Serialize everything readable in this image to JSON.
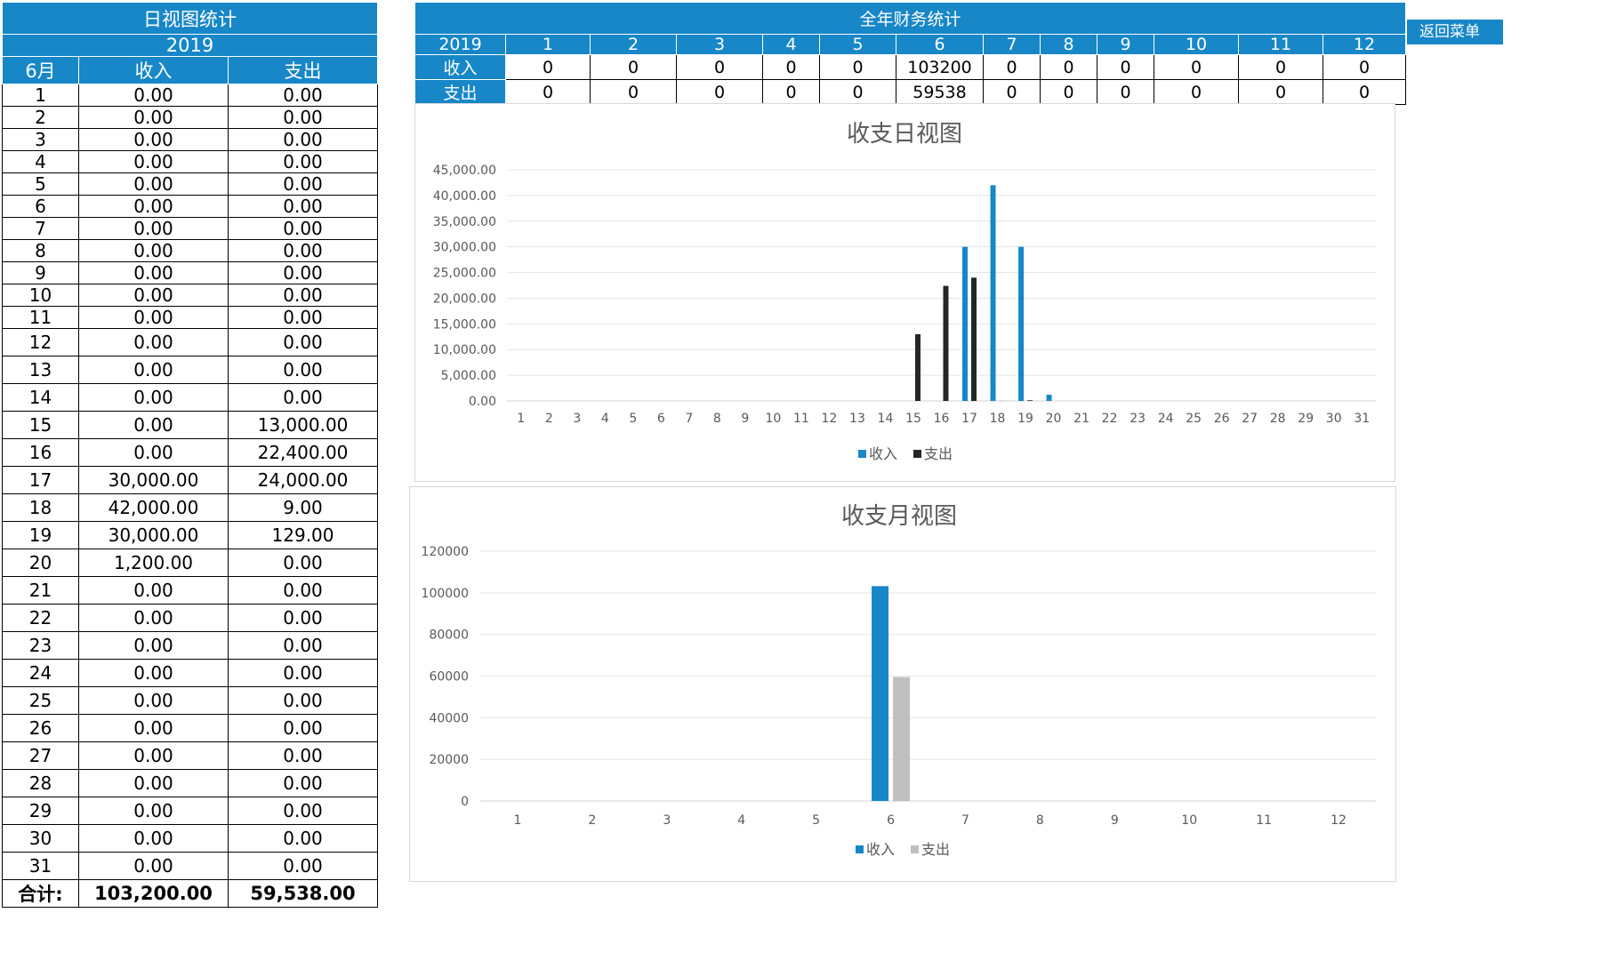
{
  "daily_table": {
    "title": "日视图统计",
    "year": "2019",
    "month_label": "6月",
    "col_income": "收入",
    "col_expense": "支出",
    "rows": [
      {
        "day": "1",
        "income": "0.00",
        "expense": "0.00"
      },
      {
        "day": "2",
        "income": "0.00",
        "expense": "0.00"
      },
      {
        "day": "3",
        "income": "0.00",
        "expense": "0.00"
      },
      {
        "day": "4",
        "income": "0.00",
        "expense": "0.00"
      },
      {
        "day": "5",
        "income": "0.00",
        "expense": "0.00"
      },
      {
        "day": "6",
        "income": "0.00",
        "expense": "0.00"
      },
      {
        "day": "7",
        "income": "0.00",
        "expense": "0.00"
      },
      {
        "day": "8",
        "income": "0.00",
        "expense": "0.00"
      },
      {
        "day": "9",
        "income": "0.00",
        "expense": "0.00"
      },
      {
        "day": "10",
        "income": "0.00",
        "expense": "0.00"
      },
      {
        "day": "11",
        "income": "0.00",
        "expense": "0.00"
      },
      {
        "day": "12",
        "income": "0.00",
        "expense": "0.00"
      },
      {
        "day": "13",
        "income": "0.00",
        "expense": "0.00"
      },
      {
        "day": "14",
        "income": "0.00",
        "expense": "0.00"
      },
      {
        "day": "15",
        "income": "0.00",
        "expense": "13,000.00"
      },
      {
        "day": "16",
        "income": "0.00",
        "expense": "22,400.00"
      },
      {
        "day": "17",
        "income": "30,000.00",
        "expense": "24,000.00"
      },
      {
        "day": "18",
        "income": "42,000.00",
        "expense": "9.00"
      },
      {
        "day": "19",
        "income": "30,000.00",
        "expense": "129.00"
      },
      {
        "day": "20",
        "income": "1,200.00",
        "expense": "0.00"
      },
      {
        "day": "21",
        "income": "0.00",
        "expense": "0.00"
      },
      {
        "day": "22",
        "income": "0.00",
        "expense": "0.00"
      },
      {
        "day": "23",
        "income": "0.00",
        "expense": "0.00"
      },
      {
        "day": "24",
        "income": "0.00",
        "expense": "0.00"
      },
      {
        "day": "25",
        "income": "0.00",
        "expense": "0.00"
      },
      {
        "day": "26",
        "income": "0.00",
        "expense": "0.00"
      },
      {
        "day": "27",
        "income": "0.00",
        "expense": "0.00"
      },
      {
        "day": "28",
        "income": "0.00",
        "expense": "0.00"
      },
      {
        "day": "29",
        "income": "0.00",
        "expense": "0.00"
      },
      {
        "day": "30",
        "income": "0.00",
        "expense": "0.00"
      },
      {
        "day": "31",
        "income": "0.00",
        "expense": "0.00"
      }
    ],
    "total_label": "合计:",
    "total_income": "103,200.00",
    "total_expense": "59,538.00"
  },
  "annual_table": {
    "title": "全年财务统计",
    "year": "2019",
    "months": [
      "1",
      "2",
      "3",
      "4",
      "5",
      "6",
      "7",
      "8",
      "9",
      "10",
      "11",
      "12"
    ],
    "income_label": "收入",
    "expense_label": "支出",
    "income": [
      "0",
      "0",
      "0",
      "0",
      "0",
      "103200",
      "0",
      "0",
      "0",
      "0",
      "0",
      "0"
    ],
    "expense": [
      "0",
      "0",
      "0",
      "0",
      "0",
      "59538",
      "0",
      "0",
      "0",
      "0",
      "0",
      "0"
    ]
  },
  "menu_button": "返回菜单",
  "colors": {
    "income": "#1787c8",
    "expense_daily": "#262626",
    "expense_monthly": "#bfbfbf",
    "header": "#1787c8"
  },
  "chart_data": [
    {
      "type": "bar",
      "title": "收支日视图",
      "categories": [
        "1",
        "2",
        "3",
        "4",
        "5",
        "6",
        "7",
        "8",
        "9",
        "10",
        "11",
        "12",
        "13",
        "14",
        "15",
        "16",
        "17",
        "18",
        "19",
        "20",
        "21",
        "22",
        "23",
        "24",
        "25",
        "26",
        "27",
        "28",
        "29",
        "30",
        "31"
      ],
      "series": [
        {
          "name": "收入",
          "values": [
            0,
            0,
            0,
            0,
            0,
            0,
            0,
            0,
            0,
            0,
            0,
            0,
            0,
            0,
            0,
            0,
            30000,
            42000,
            30000,
            1200,
            0,
            0,
            0,
            0,
            0,
            0,
            0,
            0,
            0,
            0,
            0
          ]
        },
        {
          "name": "支出",
          "values": [
            0,
            0,
            0,
            0,
            0,
            0,
            0,
            0,
            0,
            0,
            0,
            0,
            0,
            0,
            13000,
            22400,
            24000,
            9,
            129,
            0,
            0,
            0,
            0,
            0,
            0,
            0,
            0,
            0,
            0,
            0,
            0
          ]
        }
      ],
      "ylim": [
        0,
        45000
      ],
      "yticks": [
        "0.00",
        "5,000.00",
        "10,000.00",
        "15,000.00",
        "20,000.00",
        "25,000.00",
        "30,000.00",
        "35,000.00",
        "40,000.00",
        "45,000.00"
      ],
      "grid": true,
      "legend": "bottom"
    },
    {
      "type": "bar",
      "title": "收支月视图",
      "categories": [
        "1",
        "2",
        "3",
        "4",
        "5",
        "6",
        "7",
        "8",
        "9",
        "10",
        "11",
        "12"
      ],
      "series": [
        {
          "name": "收入",
          "values": [
            0,
            0,
            0,
            0,
            0,
            103200,
            0,
            0,
            0,
            0,
            0,
            0
          ]
        },
        {
          "name": "支出",
          "values": [
            0,
            0,
            0,
            0,
            0,
            59538,
            0,
            0,
            0,
            0,
            0,
            0
          ]
        }
      ],
      "ylim": [
        0,
        120000
      ],
      "yticks": [
        "0",
        "20000",
        "40000",
        "60000",
        "80000",
        "100000",
        "120000"
      ],
      "grid": true,
      "legend": "bottom"
    }
  ]
}
